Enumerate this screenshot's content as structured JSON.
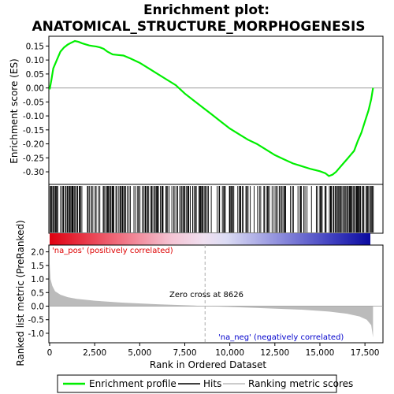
{
  "chart_data": {
    "type": "line",
    "title_line1": "Enrichment plot:",
    "title_line2": "ANATOMICAL_STRUCTURE_MORPHOGENESIS",
    "xlabel": "Rank in Ordered Dataset",
    "ylabel_top": "Enrichment score (ES)",
    "ylabel_bottom": "Ranked list metric (PreRanked)",
    "xlim": [
      0,
      18500
    ],
    "es_ylim": [
      -0.345,
      0.185
    ],
    "metric_ylim": [
      -1.35,
      2.25
    ],
    "x_ticks": [
      0,
      2500,
      5000,
      7500,
      10000,
      12500,
      15000,
      17500
    ],
    "x_tick_labels": [
      "0",
      "2,500",
      "5,000",
      "7,500",
      "10,000",
      "12,500",
      "15,000",
      "17,500"
    ],
    "es_ticks": [
      0.15,
      0.1,
      0.05,
      0.0,
      -0.05,
      -0.1,
      -0.15,
      -0.2,
      -0.25,
      -0.3
    ],
    "es_tick_labels": [
      "0.15",
      "0.10",
      "0.05",
      "0.00",
      "-0.05",
      "-0.10",
      "-0.15",
      "-0.20",
      "-0.25",
      "-0.30"
    ],
    "metric_ticks": [
      2.0,
      1.5,
      1.0,
      0.5,
      0.0,
      -0.5,
      -1.0
    ],
    "metric_tick_labels": [
      "2.0",
      "1.5",
      "1.0",
      "0.5",
      "0.0",
      "-0.5",
      "-1.0"
    ],
    "series": [
      {
        "name": "Enrichment profile",
        "color": "#00ee00",
        "x": [
          0,
          100,
          200,
          400,
          600,
          800,
          1000,
          1200,
          1400,
          1600,
          1800,
          2000,
          2200,
          2400,
          2600,
          2800,
          3000,
          3200,
          3500,
          3800,
          4100,
          4500,
          5000,
          5500,
          6000,
          6500,
          7000,
          7500,
          8000,
          8500,
          9000,
          9500,
          10000,
          10500,
          11000,
          11500,
          12000,
          12500,
          13000,
          13500,
          14000,
          14500,
          15000,
          15300,
          15500,
          15700,
          15900,
          16100,
          16300,
          16500,
          16700,
          16900,
          17100,
          17300,
          17500,
          17700,
          17850,
          17950
        ],
        "y": [
          -0.005,
          0.03,
          0.07,
          0.1,
          0.13,
          0.145,
          0.155,
          0.162,
          0.168,
          0.165,
          0.16,
          0.156,
          0.152,
          0.15,
          0.148,
          0.145,
          0.14,
          0.13,
          0.12,
          0.118,
          0.116,
          0.105,
          0.09,
          0.07,
          0.05,
          0.03,
          0.01,
          -0.02,
          -0.045,
          -0.07,
          -0.095,
          -0.12,
          -0.145,
          -0.165,
          -0.185,
          -0.2,
          -0.22,
          -0.24,
          -0.255,
          -0.27,
          -0.28,
          -0.29,
          -0.298,
          -0.305,
          -0.315,
          -0.31,
          -0.3,
          -0.285,
          -0.27,
          -0.255,
          -0.24,
          -0.225,
          -0.19,
          -0.16,
          -0.12,
          -0.08,
          -0.04,
          0.0
        ]
      }
    ],
    "metric_shape": {
      "x": [
        0,
        50,
        150,
        300,
        600,
        1000,
        1500,
        2500,
        4000,
        6000,
        8000,
        8626,
        10000,
        12000,
        14000,
        15500,
        16500,
        17200,
        17600,
        17850,
        17950
      ],
      "y": [
        1.55,
        1.0,
        0.75,
        0.55,
        0.42,
        0.33,
        0.27,
        0.2,
        0.13,
        0.07,
        0.02,
        0.0,
        -0.03,
        -0.08,
        -0.13,
        -0.2,
        -0.28,
        -0.38,
        -0.5,
        -0.7,
        -1.15
      ]
    },
    "hit_color": "#000000",
    "zero_cross": 8626,
    "zero_cross_label": "Zero cross at 8626",
    "pos_label": "'na_pos' (positively correlated)",
    "neg_label": "'na_neg' (negatively correlated)",
    "pos_color": "#dd0000",
    "neg_color": "#0000cc",
    "legend": [
      {
        "label": "Enrichment profile",
        "color": "#00ee00"
      },
      {
        "label": "Hits",
        "color": "#000000"
      },
      {
        "label": "Ranking metric scores",
        "color": "#bbbbbb"
      }
    ],
    "grid": false,
    "legend_placement": "bottom"
  }
}
